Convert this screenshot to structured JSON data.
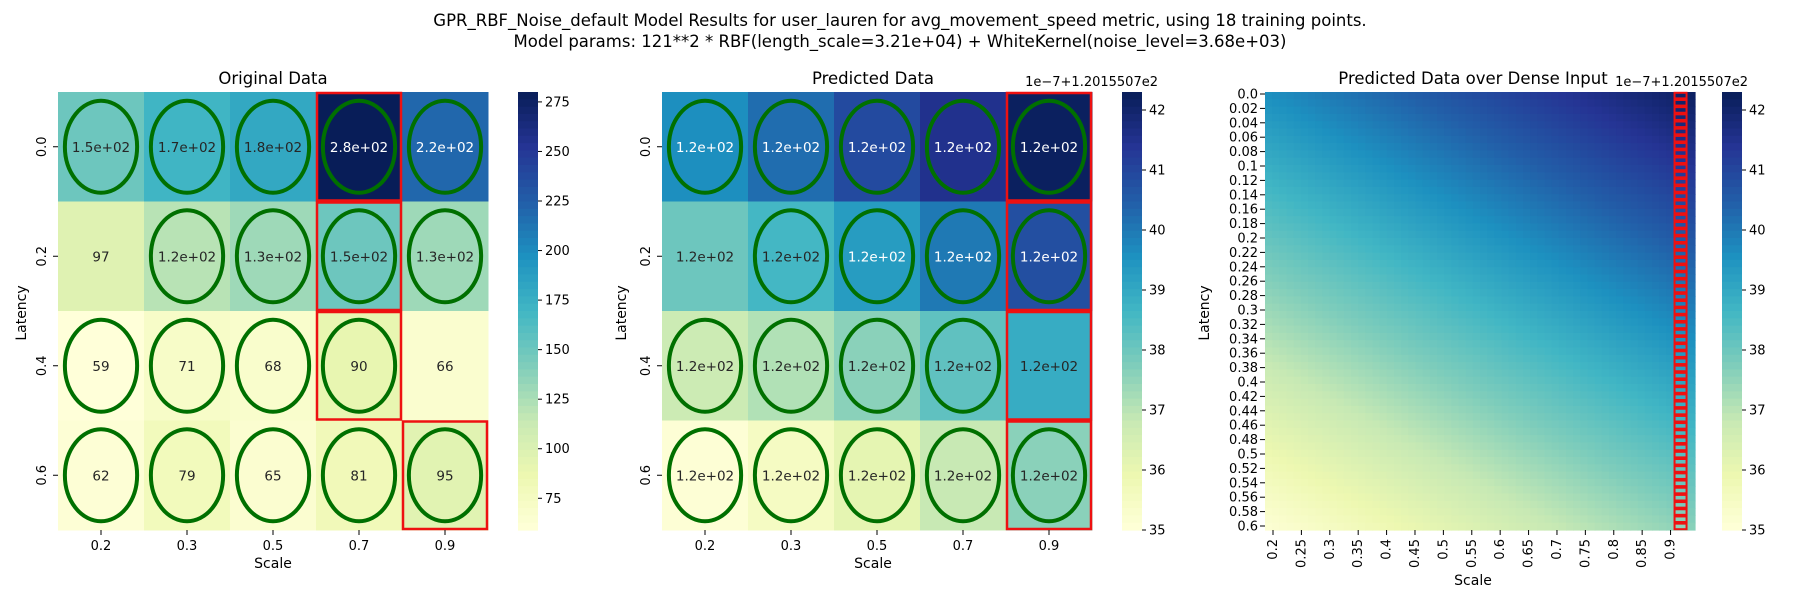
{
  "figure": {
    "title_line1": "GPR_RBF_Noise_default Model Results for user_lauren for avg_movement_speed metric, using 18 training points.",
    "title_line2": "Model params: 121**2 * RBF(length_scale=3.21e+04) + WhiteKernel(noise_level=3.68e+03)"
  },
  "colormap": [
    "#ffffd9",
    "#edf8b1",
    "#c7e9b4",
    "#7fcdbb",
    "#41b6c4",
    "#1d91c0",
    "#225ea8",
    "#253494",
    "#081d58"
  ],
  "chart_data": [
    {
      "type": "heatmap",
      "title": "Original Data",
      "xlabel": "Scale",
      "ylabel": "Latency",
      "x_categories": [
        "0.2",
        "0.3",
        "0.5",
        "0.7",
        "0.9"
      ],
      "y_categories": [
        "0.0",
        "0.2",
        "0.4",
        "0.6"
      ],
      "values": [
        [
          150,
          170,
          180,
          280,
          220
        ],
        [
          97,
          120,
          130,
          150,
          130
        ],
        [
          59,
          71,
          68,
          90,
          66
        ],
        [
          62,
          79,
          65,
          81,
          95
        ]
      ],
      "annotations": [
        [
          "1.5e+02",
          "1.7e+02",
          "1.8e+02",
          "2.8e+02",
          "2.2e+02"
        ],
        [
          "97",
          "1.2e+02",
          "1.3e+02",
          "1.5e+02",
          "1.3e+02"
        ],
        [
          "59",
          "71",
          "68",
          "90",
          "66"
        ],
        [
          "62",
          "79",
          "65",
          "81",
          "95"
        ]
      ],
      "circled": [
        [
          true,
          true,
          true,
          true,
          true
        ],
        [
          false,
          true,
          true,
          true,
          true
        ],
        [
          true,
          true,
          true,
          true,
          false
        ],
        [
          true,
          true,
          true,
          true,
          true
        ]
      ],
      "red_boxes": [
        [
          0,
          3
        ],
        [
          1,
          3
        ],
        [
          2,
          3
        ],
        [
          3,
          4
        ]
      ],
      "colorbar": {
        "min": 59,
        "max": 280,
        "ticks": [
          "75",
          "100",
          "125",
          "150",
          "175",
          "200",
          "225",
          "250",
          "275"
        ],
        "tick_values": [
          75,
          100,
          125,
          150,
          175,
          200,
          225,
          250,
          275
        ],
        "offset_label": ""
      }
    },
    {
      "type": "heatmap",
      "title": "Predicted Data",
      "xlabel": "Scale",
      "ylabel": "Latency",
      "x_categories": [
        "0.2",
        "0.3",
        "0.5",
        "0.7",
        "0.9"
      ],
      "y_categories": [
        "0.0",
        "0.2",
        "0.4",
        "0.6"
      ],
      "values": [
        [
          39.6,
          40.2,
          40.9,
          41.5,
          42.2
        ],
        [
          38.0,
          38.6,
          39.3,
          40.0,
          40.8
        ],
        [
          36.7,
          37.1,
          37.6,
          38.2,
          38.9
        ],
        [
          35.1,
          35.5,
          36.1,
          36.8,
          37.6
        ]
      ],
      "annotations": [
        [
          "1.2e+02",
          "1.2e+02",
          "1.2e+02",
          "1.2e+02",
          "1.2e+02"
        ],
        [
          "1.2e+02",
          "1.2e+02",
          "1.2e+02",
          "1.2e+02",
          "1.2e+02"
        ],
        [
          "1.2e+02",
          "1.2e+02",
          "1.2e+02",
          "1.2e+02",
          "1.2e+02"
        ],
        [
          "1.2e+02",
          "1.2e+02",
          "1.2e+02",
          "1.2e+02",
          "1.2e+02"
        ]
      ],
      "circled": [
        [
          true,
          true,
          true,
          true,
          true
        ],
        [
          false,
          true,
          true,
          true,
          true
        ],
        [
          true,
          true,
          true,
          true,
          false
        ],
        [
          true,
          true,
          true,
          true,
          true
        ]
      ],
      "red_boxes": [
        [
          0,
          4
        ],
        [
          1,
          4
        ],
        [
          2,
          4
        ],
        [
          3,
          4
        ]
      ],
      "colorbar": {
        "min": 35,
        "max": 42.3,
        "ticks": [
          "35",
          "36",
          "37",
          "38",
          "39",
          "40",
          "41",
          "42"
        ],
        "tick_values": [
          35,
          36,
          37,
          38,
          39,
          40,
          41,
          42
        ],
        "offset_label": "1e−7+1.2015507e2"
      }
    },
    {
      "type": "heatmap",
      "title": "Predicted Data over Dense Input",
      "xlabel": "Scale",
      "ylabel": "Latency",
      "x_categories": [
        "0.2",
        "0.25",
        "0.3",
        "0.35",
        "0.4",
        "0.45",
        "0.5",
        "0.55",
        "0.6",
        "0.65",
        "0.7",
        "0.75",
        "0.8",
        "0.85",
        "0.9"
      ],
      "y_categories": [
        "0.0",
        "0.02",
        "0.04",
        "0.06",
        "0.08",
        "0.1",
        "0.12",
        "0.14",
        "0.16",
        "0.18",
        "0.2",
        "0.22",
        "0.24",
        "0.26",
        "0.28",
        "0.3",
        "0.32",
        "0.34",
        "0.36",
        "0.38",
        "0.4",
        "0.42",
        "0.44",
        "0.46",
        "0.48",
        "0.5",
        "0.52",
        "0.54",
        "0.56",
        "0.58",
        "0.6"
      ],
      "x_range": [
        0.2,
        0.9
      ],
      "y_range": [
        0.0,
        0.6
      ],
      "value_corners": {
        "top_left": 39.6,
        "top_right": 42.2,
        "bottom_left": 35.1,
        "bottom_right": 37.6
      },
      "red_column_index": 14,
      "colorbar": {
        "min": 35,
        "max": 42.3,
        "ticks": [
          "35",
          "36",
          "37",
          "38",
          "39",
          "40",
          "41",
          "42"
        ],
        "tick_values": [
          35,
          36,
          37,
          38,
          39,
          40,
          41,
          42
        ],
        "offset_label": "1e−7+1.2015507e2"
      }
    }
  ]
}
